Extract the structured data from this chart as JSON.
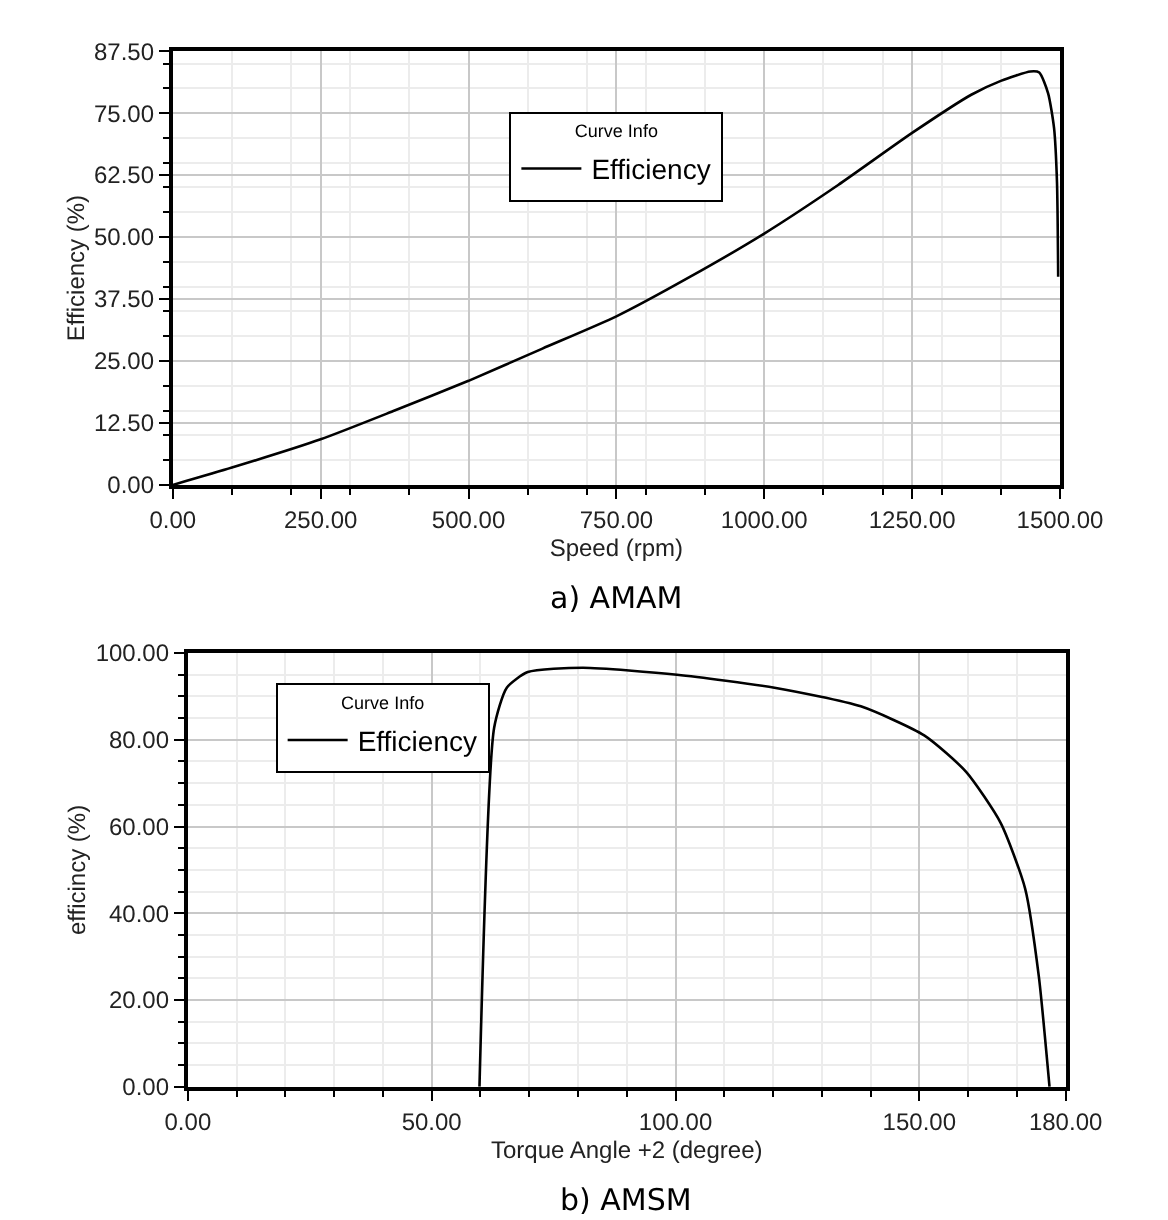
{
  "chart_data": [
    {
      "type": "line",
      "title": "a) AMAM",
      "xlabel": "Speed (rpm)",
      "ylabel": "Efficiency (%)",
      "legend_title": "Curve Info",
      "legend": "top",
      "grid": true,
      "line_style": "solid",
      "x": [
        0,
        100,
        250,
        375,
        500,
        625,
        750,
        875,
        1000,
        1125,
        1250,
        1350,
        1400,
        1450,
        1465,
        1480,
        1490,
        1495,
        1497
      ],
      "series": [
        {
          "name": "Efficiency",
          "color": "#000000",
          "values": [
            0,
            3.5,
            9.2,
            15,
            21,
            27.5,
            34,
            42,
            50.7,
            60.5,
            71,
            78.7,
            81.5,
            83.4,
            83.2,
            79,
            72,
            61,
            42
          ]
        }
      ],
      "xlim": [
        0,
        1500
      ],
      "xticks": [
        {
          "value": 0,
          "label": "0.00"
        },
        {
          "value": 250,
          "label": "250.00"
        },
        {
          "value": 500,
          "label": "500.00"
        },
        {
          "value": 750,
          "label": "750.00"
        },
        {
          "value": 1000,
          "label": "1000.00"
        },
        {
          "value": 1250,
          "label": "1250.00"
        },
        {
          "value": 1500,
          "label": "1500.00"
        }
      ],
      "ylim": [
        0,
        87.5
      ],
      "yticks": [
        {
          "value": 0,
          "label": "0.00"
        },
        {
          "value": 12.5,
          "label": "12.50"
        },
        {
          "value": 25,
          "label": "25.00"
        },
        {
          "value": 37.5,
          "label": "37.50"
        },
        {
          "value": 50,
          "label": "50.00"
        },
        {
          "value": 62.5,
          "label": "62.50"
        },
        {
          "value": 75,
          "label": "75.00"
        },
        {
          "value": 87.5,
          "label": "87.50"
        }
      ]
    },
    {
      "type": "line",
      "title": "b) AMSM",
      "xlabel": "Torque Angle +2 (degree)",
      "ylabel": "efficincy (%)",
      "legend_title": "Curve Info",
      "legend": "top left",
      "grid": true,
      "line_style": "solid",
      "x": [
        59.8,
        62.8,
        65.4,
        69.7,
        81,
        100.3,
        120.3,
        138,
        151,
        159.6,
        166.7,
        171.7,
        174.5,
        176.7
      ],
      "series": [
        {
          "name": "Efficiency",
          "color": "#000000",
          "values": [
            0,
            82.7,
            92,
            95.6,
            96.6,
            95,
            92,
            87.7,
            81,
            72.6,
            60.8,
            45.7,
            25.5,
            0
          ]
        }
      ],
      "xlim": [
        0,
        180
      ],
      "xticks": [
        {
          "value": 0,
          "label": "0.00"
        },
        {
          "value": 50,
          "label": "50.00"
        },
        {
          "value": 100,
          "label": "100.00"
        },
        {
          "value": 150,
          "label": "150.00"
        },
        {
          "value": 180,
          "label": "180.00"
        }
      ],
      "ylim": [
        0,
        100
      ],
      "yticks": [
        {
          "value": 0,
          "label": "0.00"
        },
        {
          "value": 20,
          "label": "20.00"
        },
        {
          "value": 40,
          "label": "40.00"
        },
        {
          "value": 60,
          "label": "60.00"
        },
        {
          "value": 80,
          "label": "80.00"
        },
        {
          "value": 100,
          "label": "100.00"
        }
      ]
    }
  ]
}
